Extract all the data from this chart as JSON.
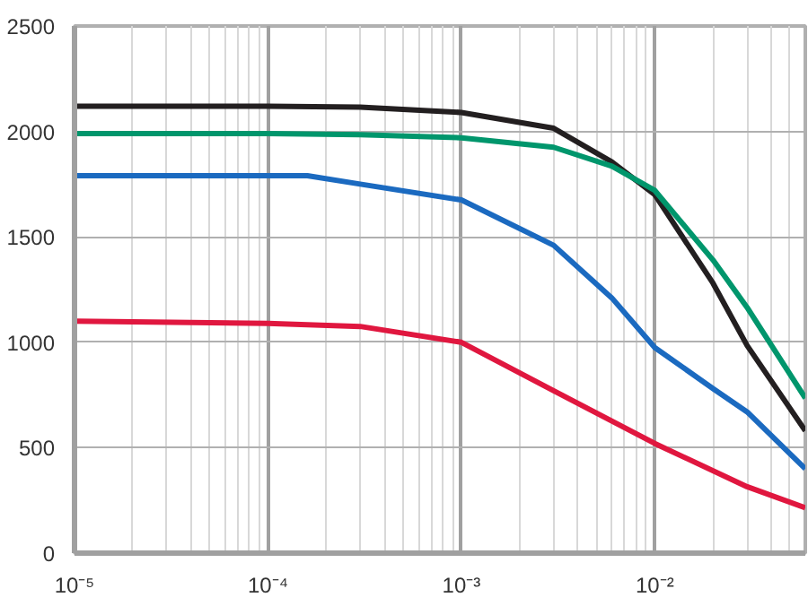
{
  "chart_data": {
    "type": "line",
    "log": "x",
    "grid": true,
    "line_style": "solid",
    "xlim": [
      1e-05,
      0.06
    ],
    "xticks": [
      {
        "value": 1e-05,
        "label": "10⁻⁵"
      },
      {
        "value": 0.0001,
        "label": "10⁻⁴"
      },
      {
        "value": 0.001,
        "label": "10⁻³"
      },
      {
        "value": 0.01,
        "label": "10⁻²"
      }
    ],
    "ylim": [
      0,
      2500
    ],
    "yticks": [
      0,
      500,
      1000,
      1500,
      2000,
      2500
    ],
    "series": [
      {
        "color": "#231f20",
        "x": [
          1e-05,
          0.0001,
          0.0003,
          0.001,
          0.003,
          0.006,
          0.01,
          0.02,
          0.03,
          0.06
        ],
        "values": [
          2120,
          2120,
          2115,
          2090,
          2015,
          1855,
          1700,
          1280,
          985,
          580
        ]
      },
      {
        "color": "#00966c",
        "x": [
          1e-05,
          0.0001,
          0.0003,
          0.001,
          0.003,
          0.006,
          0.01,
          0.02,
          0.03,
          0.06
        ],
        "values": [
          1990,
          1990,
          1985,
          1970,
          1925,
          1835,
          1720,
          1390,
          1165,
          735
        ]
      },
      {
        "color": "#1b6ac0",
        "x": [
          1e-05,
          0.0001,
          0.00016,
          0.0003,
          0.001,
          0.003,
          0.006,
          0.01,
          0.02,
          0.03,
          0.06
        ],
        "values": [
          1790,
          1790,
          1790,
          1750,
          1675,
          1460,
          1210,
          975,
          780,
          670,
          400
        ]
      },
      {
        "color": "#e0173f",
        "x": [
          1e-05,
          0.0001,
          0.0003,
          0.001,
          0.003,
          0.01,
          0.03,
          0.06
        ],
        "values": [
          1100,
          1090,
          1075,
          1000,
          770,
          520,
          315,
          215
        ]
      }
    ]
  }
}
